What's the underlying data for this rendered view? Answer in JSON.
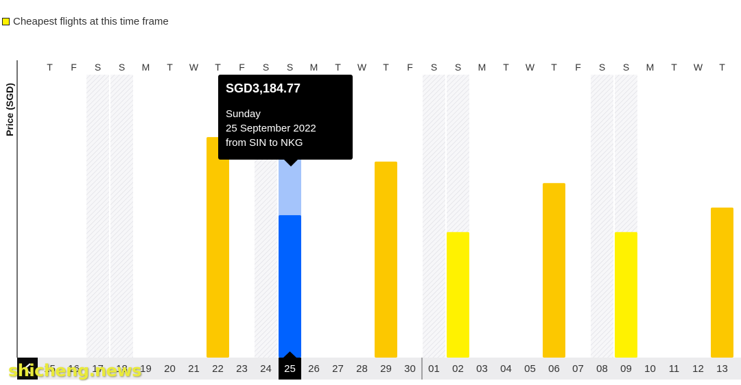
{
  "legend": {
    "label": "Cheapest flights at this time frame"
  },
  "chart_data": {
    "type": "bar",
    "ylabel": "Price (SGD)",
    "weekday_labels": [
      "T",
      "F",
      "S",
      "S",
      "M",
      "T",
      "W",
      "T",
      "F",
      "S",
      "S",
      "M",
      "T",
      "W",
      "T",
      "F",
      "S",
      "S",
      "M",
      "T",
      "W",
      "T",
      "F",
      "S",
      "S",
      "M",
      "T",
      "W",
      "T"
    ],
    "categories": [
      "15",
      "16",
      "17",
      "18",
      "19",
      "20",
      "21",
      "22",
      "23",
      "24",
      "25",
      "26",
      "27",
      "28",
      "29",
      "30",
      "01",
      "02",
      "03",
      "04",
      "05",
      "06",
      "07",
      "08",
      "09",
      "10",
      "11",
      "12",
      "13"
    ],
    "weekend_indices": [
      2,
      3,
      9,
      10,
      16,
      17,
      23,
      24
    ],
    "selected_index": 10,
    "bars": [
      {
        "index": 7,
        "value": 0.72,
        "color": "#fcc800"
      },
      {
        "index": 10,
        "value": 0.765,
        "base_value": 0.465,
        "color": "#a4c4fb",
        "base_color": "#0062ff"
      },
      {
        "index": 14,
        "value": 0.64,
        "color": "#fcc800"
      },
      {
        "index": 17,
        "value": 0.41,
        "color": "#fff200"
      },
      {
        "index": 21,
        "value": 0.57,
        "color": "#fcc800"
      },
      {
        "index": 24,
        "value": 0.41,
        "color": "#fff200"
      },
      {
        "index": 28,
        "value": 0.49,
        "color": "#fcc800"
      }
    ]
  },
  "tooltip": {
    "price": "SGD3,184.77",
    "day": "Sunday",
    "date": "25 September 2022",
    "route": "from SIN to NKG"
  },
  "watermark": "shicheng.news"
}
